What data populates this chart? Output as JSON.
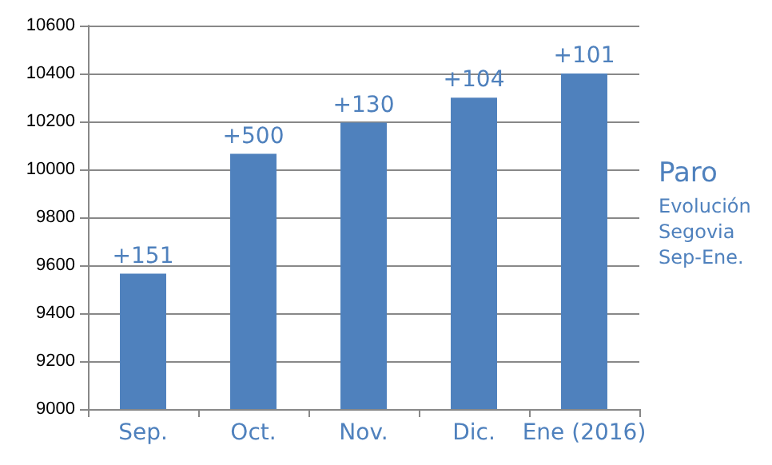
{
  "chart_data": {
    "type": "bar",
    "title": "Paro",
    "subtitle": "Evolución\nSegovia\nSep-Ene.",
    "categories": [
      "Sep.",
      "Oct.",
      "Nov.",
      "Dic.",
      "Ene (2016)"
    ],
    "values": [
      9565,
      10065,
      10195,
      10299,
      10400
    ],
    "color": "#4f81bd",
    "annotations": [
      {
        "text": "+151",
        "x": "Sep.",
        "y": 9565
      },
      {
        "text": "+500",
        "x": "Oct.",
        "y": 10065
      },
      {
        "text": "+130",
        "x": "Nov.",
        "y": 10195
      },
      {
        "text": "+104",
        "x": "Dic.",
        "y": 10299
      },
      {
        "text": "+101",
        "x": "Ene (2016)",
        "y": 10400
      }
    ],
    "ylim": [
      9000,
      10600
    ],
    "yticks": [
      9000,
      9200,
      9400,
      9600,
      9800,
      10000,
      10200,
      10400,
      10600
    ],
    "grid": "y"
  }
}
